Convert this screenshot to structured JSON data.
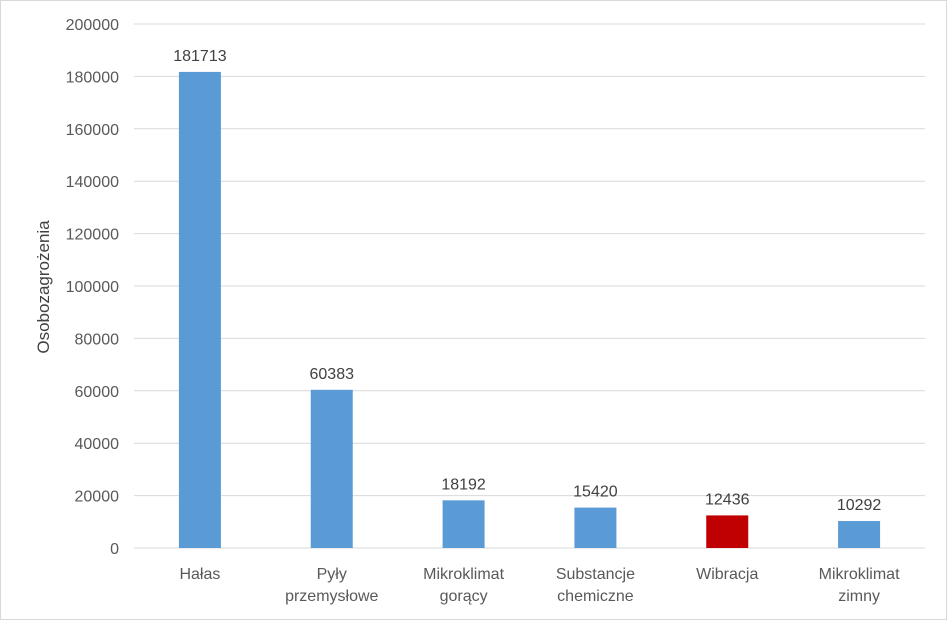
{
  "chart_data": {
    "type": "bar",
    "categories": [
      [
        "Hałas"
      ],
      [
        "Pyły",
        "przemysłowe"
      ],
      [
        "Mikroklimat",
        "gorący"
      ],
      [
        "Substancje",
        "chemiczne"
      ],
      [
        "Wibracja"
      ],
      [
        "Mikroklimat",
        "zimny"
      ]
    ],
    "values": [
      181713,
      60383,
      18192,
      15420,
      12436,
      10292
    ],
    "data_labels": [
      "181713",
      "60383",
      "18192",
      "15420",
      "12436",
      "10292"
    ],
    "bar_colors": [
      "#5b9bd5",
      "#5b9bd5",
      "#5b9bd5",
      "#5b9bd5",
      "#c00000",
      "#5b9bd5"
    ],
    "ylabel": "Osobozagrożenia",
    "xlabel": "",
    "title": "",
    "ylim": [
      0,
      200000
    ],
    "yticks": [
      "0",
      "20000",
      "40000",
      "60000",
      "80000",
      "100000",
      "120000",
      "140000",
      "160000",
      "180000",
      "200000"
    ],
    "grid": true,
    "legend": "none",
    "gridline_color": "#d9d9d9"
  }
}
